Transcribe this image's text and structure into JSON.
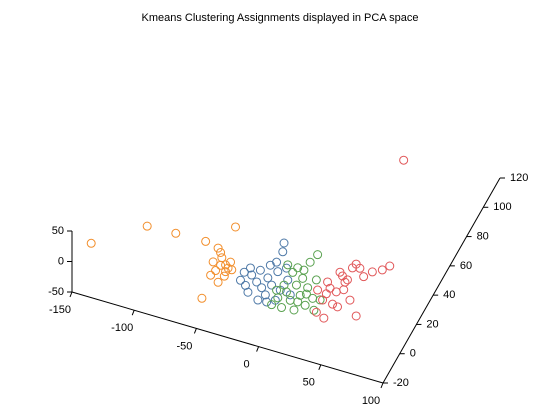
{
  "chart_data": {
    "type": "scatter3d",
    "title": "Kmeans Clustering Assignments displayed in PCA space",
    "xlim": [
      -150,
      100
    ],
    "xticks": [
      -150,
      -100,
      -50,
      0,
      50,
      100
    ],
    "ylim": [
      -20,
      120
    ],
    "yticks": [
      -20,
      0,
      20,
      40,
      60,
      80,
      100,
      120
    ],
    "zlim": [
      -50,
      50
    ],
    "zticks": [
      -50,
      0,
      50
    ],
    "grid": false,
    "series": [
      {
        "color": "#f28e2b",
        "x": [
          -148,
          -103,
          -80,
          -56,
          -32,
          -46,
          -44,
          -43,
          -40,
          -38,
          -35,
          -50,
          -52,
          -46,
          -59,
          -40,
          -36,
          -44,
          -48,
          -41
        ],
        "y": [
          0,
          0,
          0,
          0,
          0,
          0,
          0,
          0,
          0,
          0,
          0,
          0,
          0,
          0,
          0,
          0,
          0,
          0,
          0,
          0
        ],
        "z": [
          -17,
          38,
          40,
          41,
          79,
          36,
          30,
          22,
          12,
          8,
          7,
          11,
          -12,
          -20,
          -54,
          1,
          19,
          9,
          -2,
          -7
        ]
      },
      {
        "color": "#4e79a7",
        "x": [
          -28,
          -24,
          -22,
          -19,
          -15,
          -12,
          -11,
          -8,
          -6,
          -4,
          -3,
          0,
          2,
          4,
          7,
          6,
          10,
          12,
          -14,
          -20,
          -25,
          -7,
          1,
          9
        ],
        "y": [
          0,
          0,
          0,
          0,
          0,
          0,
          0,
          0,
          0,
          0,
          0,
          0,
          0,
          0,
          0,
          0,
          0,
          0,
          0,
          0,
          0,
          0,
          0,
          0
        ],
        "z": [
          -6,
          -12,
          -22,
          8,
          -1,
          20,
          -8,
          -18,
          11,
          33,
          1,
          -22,
          26,
          -3,
          76,
          61,
          17,
          -6,
          -30,
          19,
          9,
          -29,
          41,
          36
        ]
      },
      {
        "color": "#59a14f",
        "x": [
          -3,
          2,
          5,
          9,
          12,
          15,
          17,
          18,
          20,
          22,
          24,
          26,
          28,
          30,
          33,
          34,
          36,
          14,
          10,
          23,
          31,
          18,
          7,
          1,
          25
        ],
        "y": [
          0,
          0,
          0,
          0,
          0,
          0,
          0,
          0,
          0,
          0,
          0,
          0,
          0,
          0,
          0,
          0,
          0,
          0,
          0,
          0,
          0,
          0,
          0,
          0,
          0
        ],
        "z": [
          -31,
          -17,
          -31,
          -3,
          -15,
          -29,
          13,
          42,
          -2,
          27,
          -16,
          14,
          57,
          -1,
          31,
          73,
          0,
          32,
          42,
          41,
          -20,
          -14,
          7,
          -5,
          3
        ]
      },
      {
        "color": "#e15759",
        "x": [
          36,
          92,
          86,
          78,
          71,
          65,
          62,
          58,
          56,
          52,
          54,
          49,
          50,
          44,
          41,
          38,
          34,
          39,
          33,
          60,
          65,
          55,
          46,
          42,
          68
        ],
        "y": [
          100,
          0,
          0,
          0,
          0,
          0,
          0,
          0,
          0,
          0,
          0,
          0,
          0,
          0,
          0,
          0,
          0,
          0,
          0,
          0,
          0,
          0,
          0,
          0,
          0
        ],
        "z": [
          -11,
          89,
          79,
          71,
          59,
          76,
          68,
          46,
          41,
          55,
          50,
          21,
          -3,
          24,
          13,
          1,
          15,
          -28,
          -22,
          14,
          -9,
          28,
          -1,
          33,
          71
        ]
      }
    ]
  }
}
